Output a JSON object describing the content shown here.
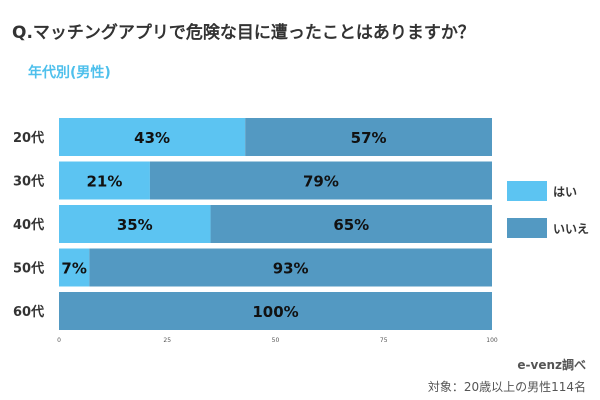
{
  "title": "Q.マッチングアプリで危険な目に遭ったことはありますか？",
  "subtitle": "年代別(男性)",
  "credit": "e-venz調べ",
  "note": "対象：20歳以上の男性114名",
  "colors": {
    "yes": "#5cc4f2",
    "no": "#5399c2"
  },
  "chart_data": {
    "type": "bar",
    "orientation": "horizontal",
    "stacked": true,
    "categories": [
      "20代",
      "30代",
      "40代",
      "50代",
      "60代"
    ],
    "series": [
      {
        "name": "はい",
        "values": [
          43,
          21,
          35,
          7,
          0
        ],
        "labels": [
          "43%",
          "21%",
          "35%",
          "7%",
          ""
        ]
      },
      {
        "name": "いいえ",
        "values": [
          57,
          79,
          65,
          93,
          100
        ],
        "labels": [
          "57%",
          "79%",
          "65%",
          "93%",
          "100%"
        ]
      }
    ],
    "xlim": [
      0,
      100
    ],
    "xticks": [
      "0",
      "25",
      "50",
      "75",
      "100"
    ],
    "legend": "right",
    "grid": false
  }
}
